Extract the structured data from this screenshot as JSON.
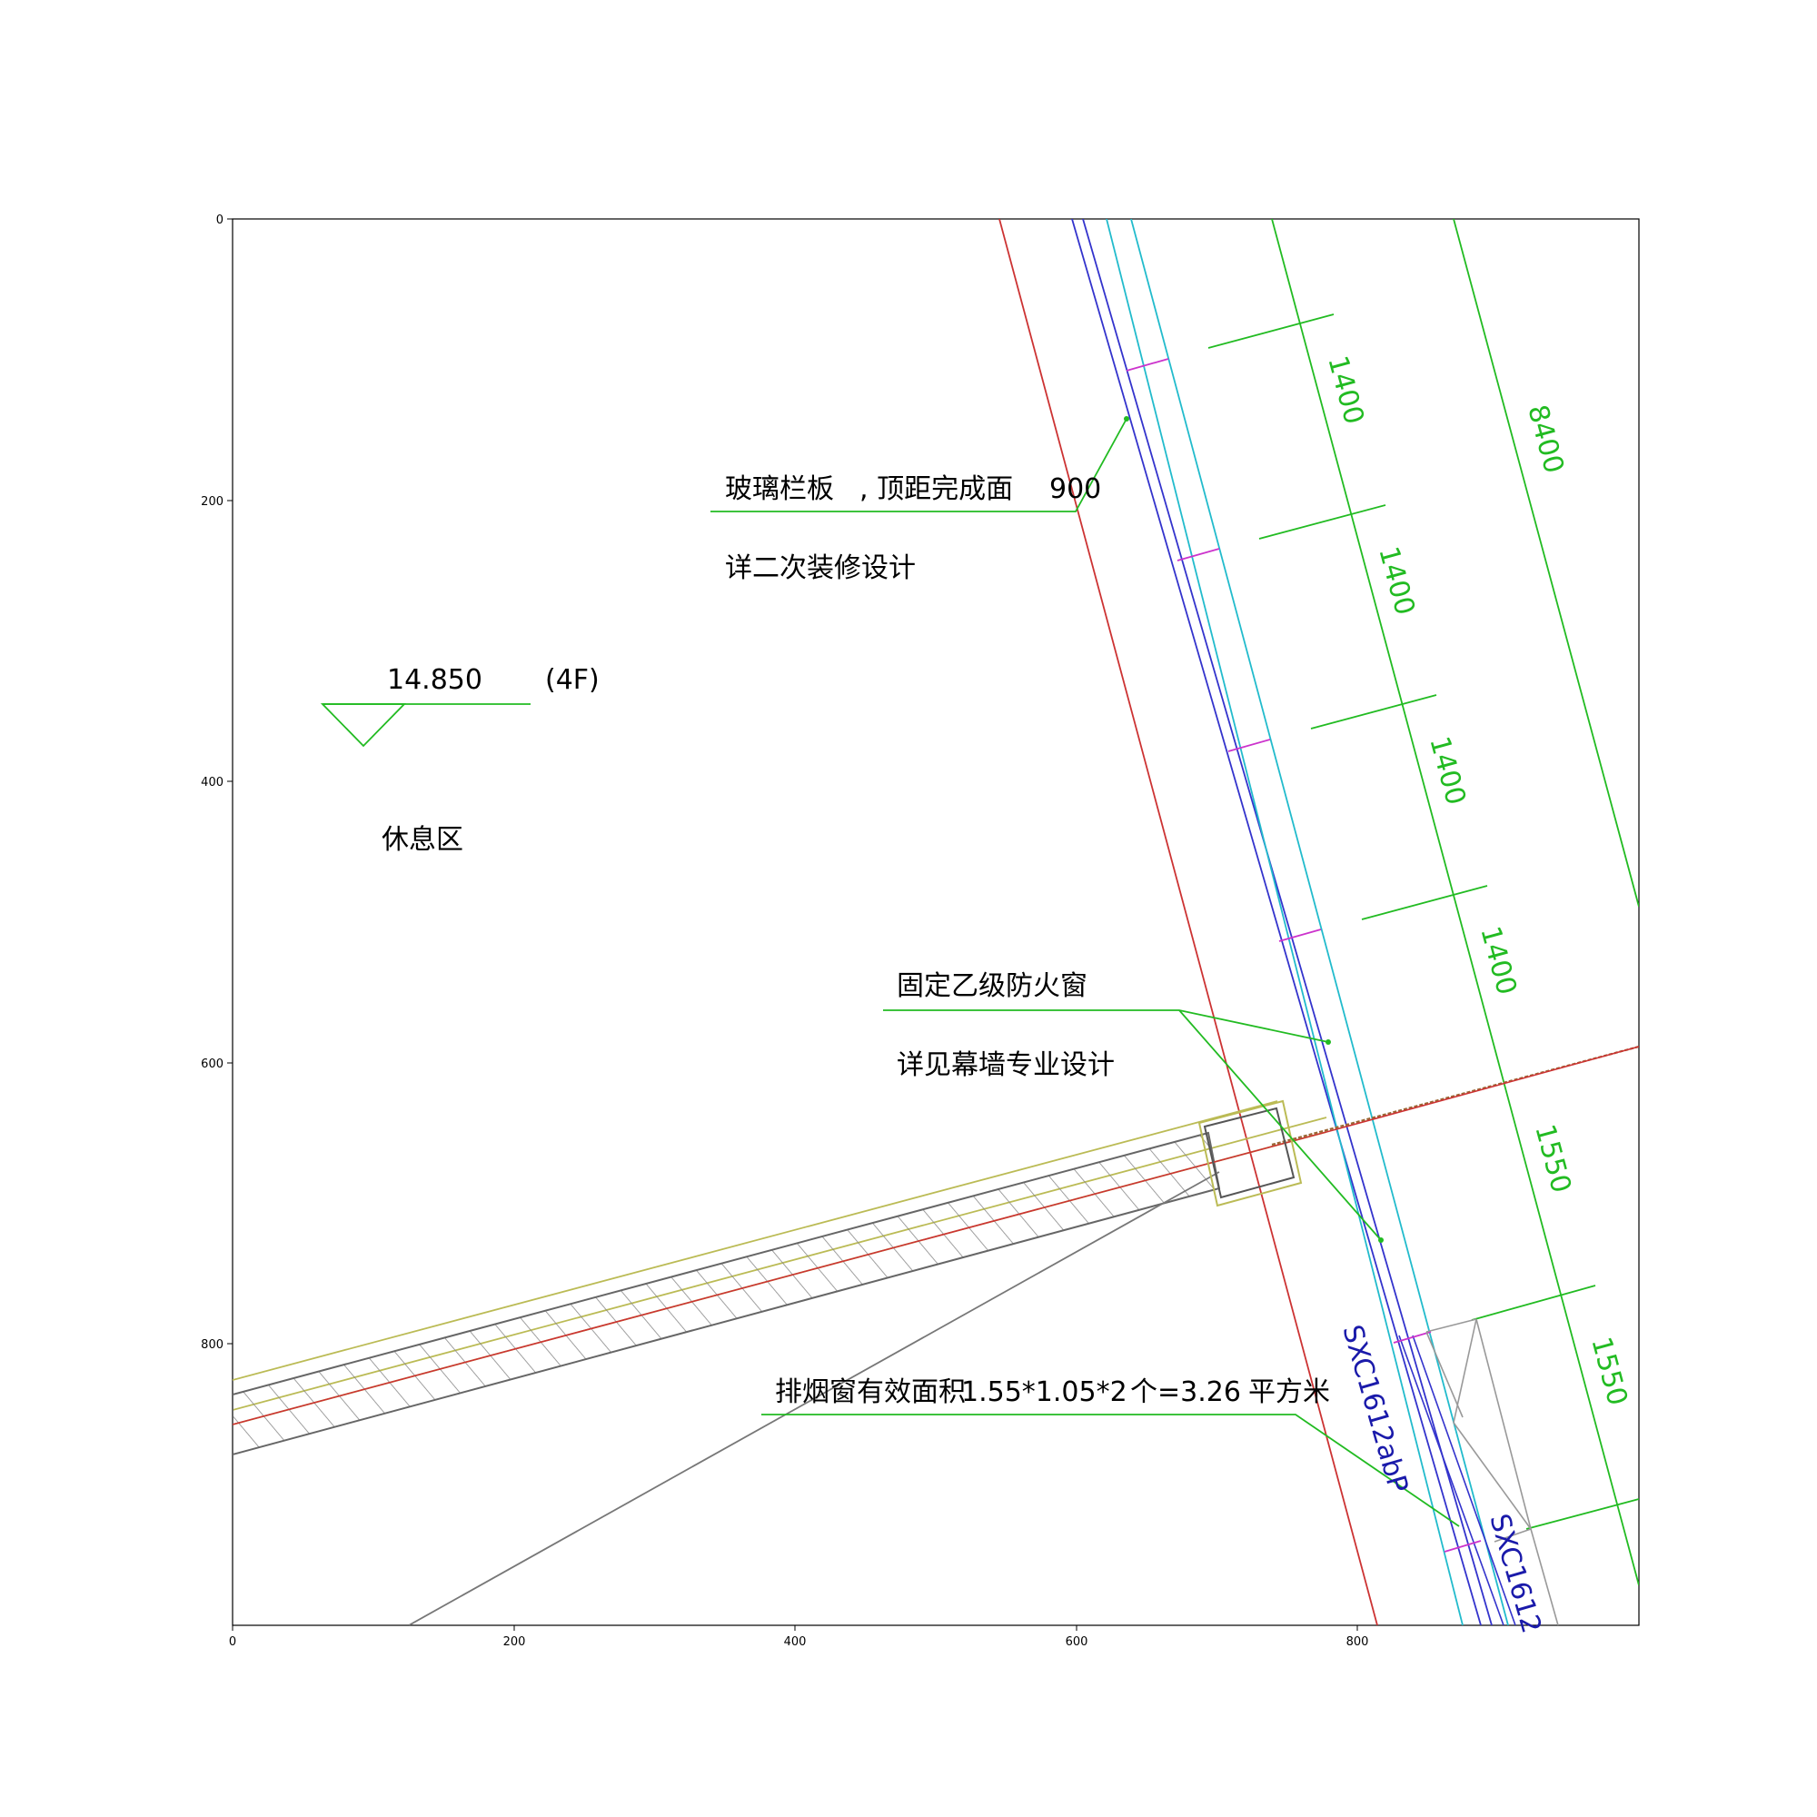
{
  "plot": {
    "x_ticks": [
      "0",
      "200",
      "400",
      "600",
      "800"
    ],
    "y_ticks": [
      "0",
      "200",
      "400",
      "600",
      "800"
    ],
    "xlim": [
      0,
      1000
    ],
    "ylim": [
      1000,
      0
    ]
  },
  "annotations": {
    "glass_rail_1": "玻璃栏板",
    "glass_rail_2": ", 顶距完成面",
    "glass_rail_3": "900",
    "glass_rail_detail": "详二次装修设计",
    "elevation_value": "14.850",
    "floor_tag": "(4F)",
    "rest_area": "休息区",
    "fire_window": "固定乙级防火窗",
    "fire_window_detail": "详见幕墙专业设计",
    "smoke_window_1": "排烟窗有效面积",
    "smoke_window_2": "1.55*1.05*2",
    "smoke_window_3": "个=3.26",
    "smoke_window_4": "平方米",
    "window_code_1": "SXC1612abP",
    "window_code_2": "SXC1612"
  },
  "dimensions": {
    "d1": "1400",
    "d2": "1400",
    "d3": "1400",
    "d4": "1400",
    "d5": "1550",
    "d6": "1550",
    "total": "8400"
  },
  "colors": {
    "dimension_green": "#22bb22",
    "facade_blue": "#3333cc",
    "glass_cyan": "#22bbcc",
    "axis_red": "#cc3333",
    "wall_gray": "#777777",
    "slab_yellow": "#bbbb55",
    "mullion_magenta": "#cc33cc"
  }
}
